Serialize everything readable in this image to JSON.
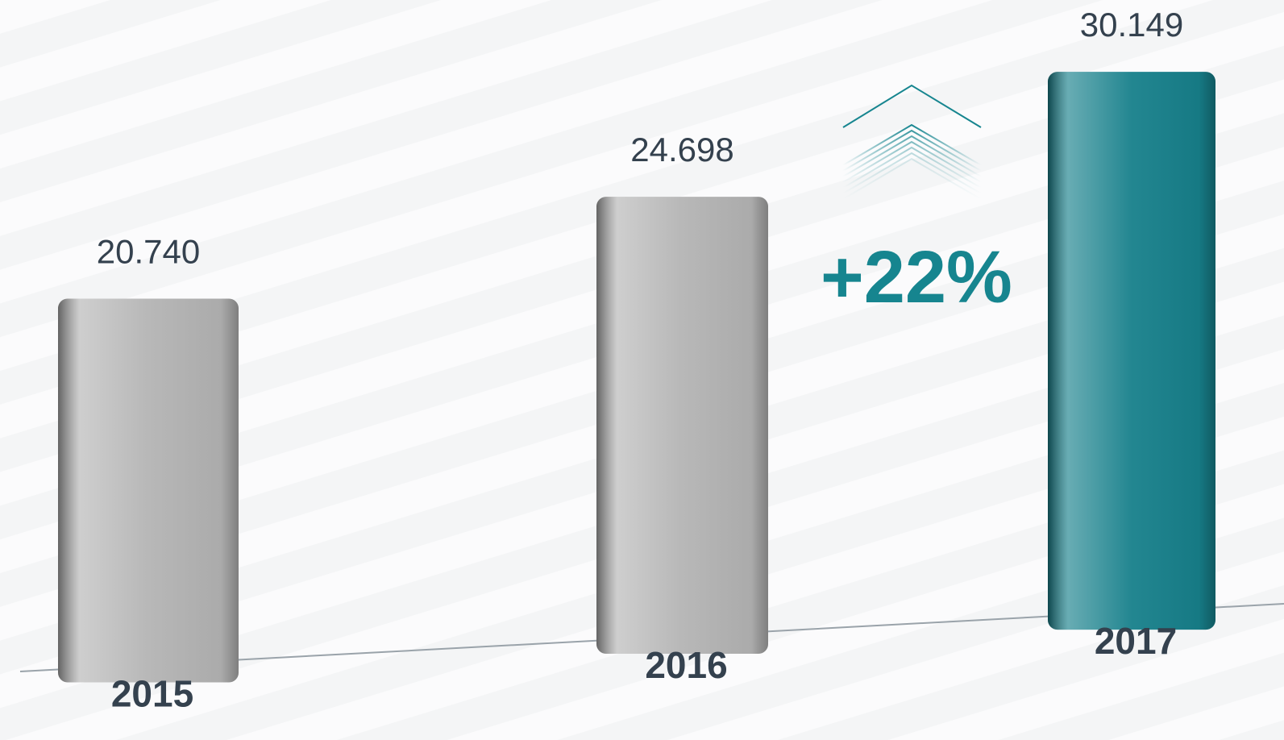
{
  "chart_data": {
    "type": "bar",
    "categories": [
      "2015",
      "2016",
      "2017"
    ],
    "values": [
      20740,
      24698,
      30149
    ],
    "value_labels": [
      "20.740",
      "24.698",
      "30.149"
    ],
    "colors": [
      "#b4b4b4",
      "#b4b4b4",
      "#17808b"
    ],
    "annotation": "+22%"
  }
}
